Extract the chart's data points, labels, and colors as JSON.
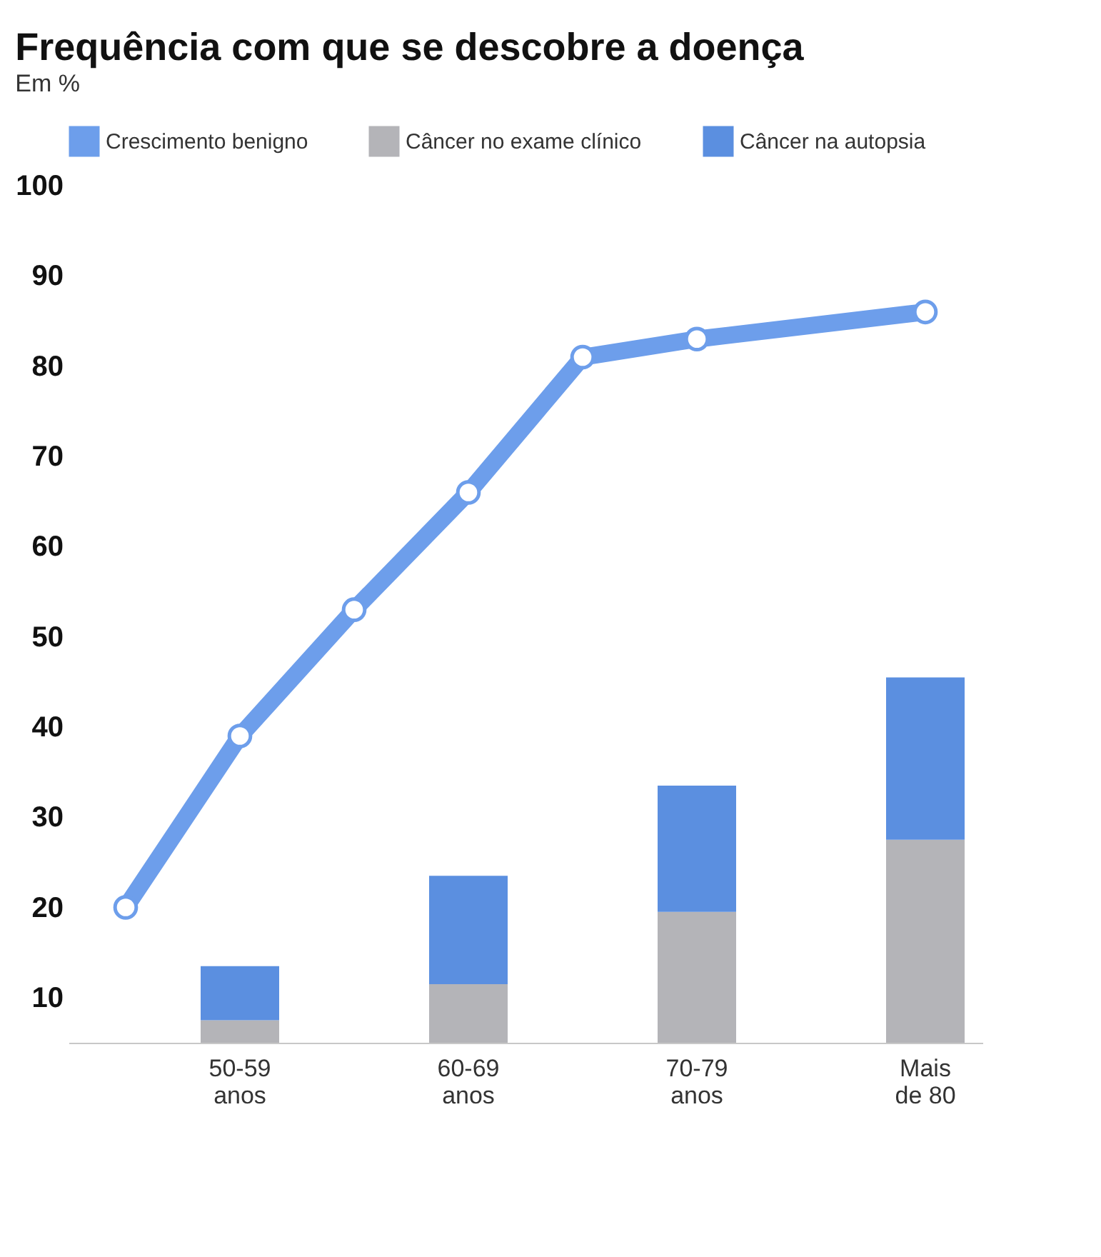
{
  "chart_data": {
    "type": "bar",
    "title": "Frequência com que se descobre a doença",
    "subtitle": "Em %",
    "categories": [
      null,
      "50-59\nanos",
      null,
      "60-69\nanos",
      null,
      "70-79\nanos",
      null,
      "Mais\nde 80"
    ],
    "ylim": [
      5,
      100
    ],
    "yticks": [
      10,
      20,
      30,
      40,
      50,
      60,
      70,
      80,
      90,
      100
    ],
    "stacked": true,
    "grid": false,
    "legend": "top left",
    "marker": "circle",
    "series": [
      {
        "name": "Crescimento benigno",
        "type": "line",
        "color": "#6d9eeb",
        "values": [
          20,
          39,
          53,
          66,
          81,
          83,
          null,
          86
        ]
      },
      {
        "name": "Câncer no exame clínico",
        "color": "#b4b4b8",
        "values": [
          null,
          7.5,
          null,
          11.5,
          null,
          19.5,
          null,
          27.5
        ]
      },
      {
        "name": "Câncer na autopsia",
        "color": "#5b8fe0",
        "values": [
          null,
          6,
          null,
          12,
          null,
          14,
          null,
          18
        ]
      }
    ]
  }
}
